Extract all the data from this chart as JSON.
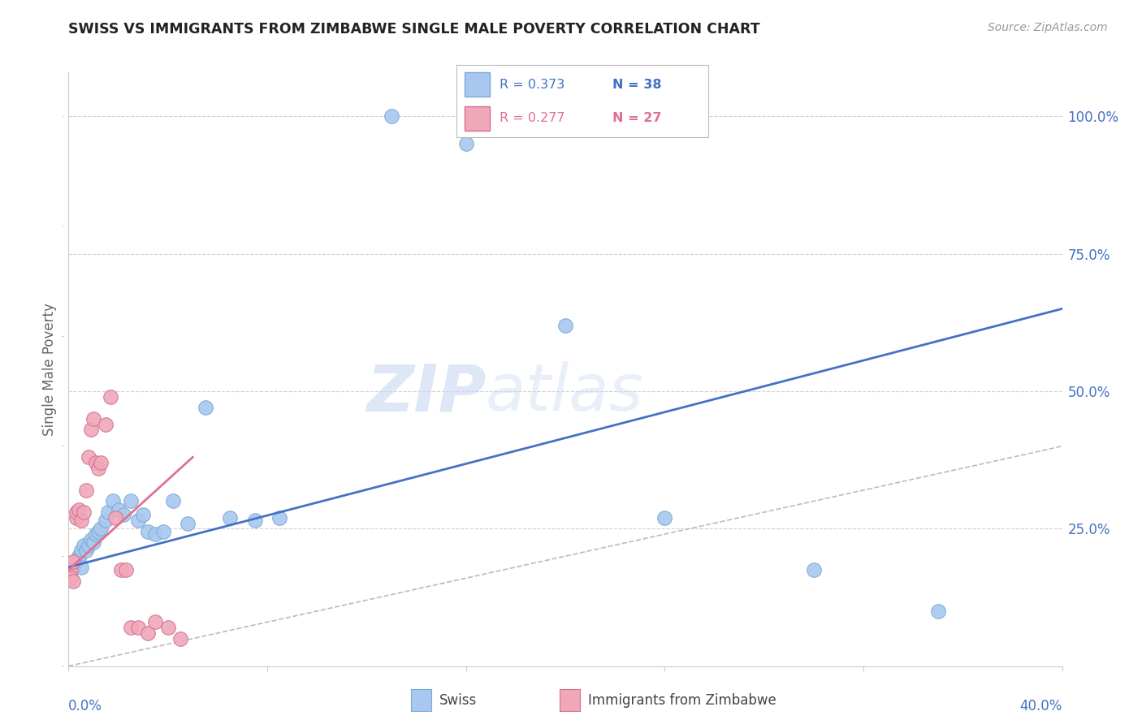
{
  "title": "SWISS VS IMMIGRANTS FROM ZIMBABWE SINGLE MALE POVERTY CORRELATION CHART",
  "source": "Source: ZipAtlas.com",
  "ylabel": "Single Male Poverty",
  "xlim": [
    0.0,
    0.4
  ],
  "ylim": [
    0.0,
    1.08
  ],
  "watermark_line1": "ZIP",
  "watermark_line2": "atlas",
  "swiss_color": "#a8c8f0",
  "swiss_edge_color": "#7aaad0",
  "zim_color": "#f0a8b8",
  "zim_edge_color": "#d07090",
  "blue_line_color": "#4472c4",
  "pink_line_color": "#e07090",
  "diagonal_color": "#bbbbbb",
  "swiss_x": [
    0.001,
    0.002,
    0.003,
    0.004,
    0.004,
    0.005,
    0.005,
    0.006,
    0.007,
    0.008,
    0.009,
    0.01,
    0.011,
    0.012,
    0.013,
    0.015,
    0.016,
    0.018,
    0.02,
    0.022,
    0.025,
    0.028,
    0.03,
    0.032,
    0.035,
    0.038,
    0.042,
    0.048,
    0.055,
    0.065,
    0.075,
    0.085,
    0.13,
    0.16,
    0.2,
    0.24,
    0.3,
    0.35
  ],
  "swiss_y": [
    0.175,
    0.18,
    0.19,
    0.2,
    0.195,
    0.21,
    0.18,
    0.22,
    0.21,
    0.22,
    0.23,
    0.225,
    0.24,
    0.245,
    0.25,
    0.265,
    0.28,
    0.3,
    0.285,
    0.275,
    0.3,
    0.265,
    0.275,
    0.245,
    0.24,
    0.245,
    0.3,
    0.26,
    0.47,
    0.27,
    0.265,
    0.27,
    1.0,
    0.95,
    0.62,
    0.27,
    0.175,
    0.1
  ],
  "zim_x": [
    0.001,
    0.001,
    0.002,
    0.002,
    0.003,
    0.003,
    0.004,
    0.005,
    0.006,
    0.007,
    0.008,
    0.009,
    0.01,
    0.011,
    0.012,
    0.013,
    0.015,
    0.017,
    0.019,
    0.021,
    0.023,
    0.025,
    0.028,
    0.032,
    0.035,
    0.04,
    0.045
  ],
  "zim_y": [
    0.175,
    0.16,
    0.155,
    0.19,
    0.27,
    0.28,
    0.285,
    0.265,
    0.28,
    0.32,
    0.38,
    0.43,
    0.45,
    0.37,
    0.36,
    0.37,
    0.44,
    0.49,
    0.27,
    0.175,
    0.175,
    0.07,
    0.07,
    0.06,
    0.08,
    0.07,
    0.05
  ]
}
